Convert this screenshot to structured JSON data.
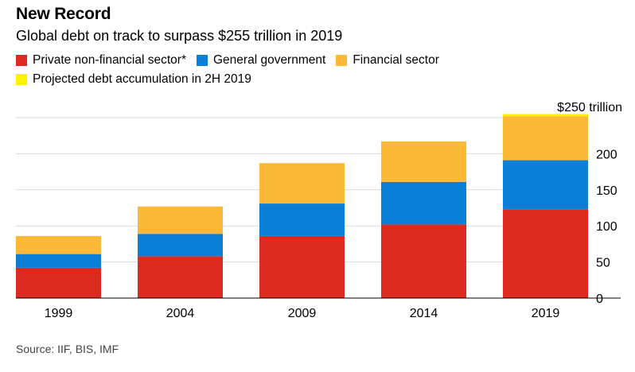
{
  "title": "New Record",
  "subtitle": "Global debt on track to surpass $255 trillion in 2019",
  "legend": [
    {
      "label": "Private non-financial sector*",
      "color": "#dc2a21"
    },
    {
      "label": "General government",
      "color": "#0b7fd6"
    },
    {
      "label": "Financial sector",
      "color": "#fbb935"
    },
    {
      "label": "Projected debt accumulation in 2H 2019",
      "color": "#fff200"
    }
  ],
  "source": "Source: IIF, BIS, IMF",
  "chart_data": {
    "type": "bar",
    "stacked": true,
    "categories": [
      "1999",
      "2004",
      "2009",
      "2014",
      "2019"
    ],
    "series": [
      {
        "name": "Private non-financial sector*",
        "color": "#dc2a21",
        "values": [
          42,
          58,
          86,
          102,
          123
        ]
      },
      {
        "name": "General government",
        "color": "#0b7fd6",
        "values": [
          19,
          31,
          45,
          59,
          68
        ]
      },
      {
        "name": "Financial sector",
        "color": "#fbb935",
        "values": [
          25,
          38,
          56,
          56,
          61
        ]
      },
      {
        "name": "Projected debt accumulation in 2H 2019",
        "color": "#fff200",
        "values": [
          0,
          0,
          0,
          0,
          3
        ]
      }
    ],
    "ylim": [
      0,
      250
    ],
    "yticks": [
      0,
      50,
      100,
      150,
      200,
      250
    ],
    "ytick_labels": [
      "0",
      "50",
      "100",
      "150",
      "200",
      "$250 trillion"
    ],
    "grid": true,
    "y_axis_side": "right",
    "legend_position": "top-left"
  }
}
